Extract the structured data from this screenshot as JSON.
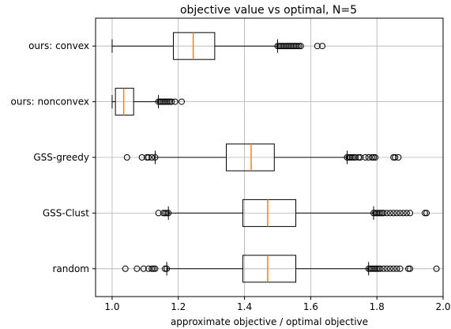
{
  "chart_data": {
    "type": "boxplot",
    "orientation": "horizontal",
    "title": "objective value vs optimal, N=5",
    "xlabel": "approximate objective / optimal objective",
    "ylabel": "",
    "xlim": [
      0.95,
      2.0
    ],
    "xticks": [
      1.0,
      1.2,
      1.4,
      1.6,
      1.8,
      2.0
    ],
    "xtick_labels": [
      "1.0",
      "1.2",
      "1.4",
      "1.6",
      "1.8",
      "2.0"
    ],
    "grid": true,
    "colors": {
      "box": "#000000",
      "median": "#ff7f0e",
      "grid": "#b0b0b0",
      "flier": "#000000"
    },
    "series": [
      {
        "name": "ours: convex",
        "whislo": 1.0,
        "q1": 1.185,
        "median": 1.245,
        "q3": 1.31,
        "whishi": 1.5,
        "fliers": [
          1.5,
          1.505,
          1.51,
          1.515,
          1.52,
          1.525,
          1.53,
          1.535,
          1.54,
          1.545,
          1.55,
          1.555,
          1.56,
          1.565,
          1.57,
          1.62,
          1.635
        ]
      },
      {
        "name": "ours: nonconvex",
        "whislo": 1.0,
        "q1": 1.01,
        "median": 1.035,
        "q3": 1.065,
        "whishi": 1.14,
        "fliers": [
          1.14,
          1.145,
          1.15,
          1.155,
          1.16,
          1.165,
          1.17,
          1.175,
          1.18,
          1.19,
          1.21
        ]
      },
      {
        "name": "GSS-greedy",
        "whislo": 1.13,
        "q1": 1.345,
        "median": 1.42,
        "q3": 1.49,
        "whishi": 1.71,
        "fliers": [
          1.045,
          1.09,
          1.105,
          1.11,
          1.12,
          1.13,
          1.71,
          1.715,
          1.72,
          1.725,
          1.73,
          1.735,
          1.745,
          1.75,
          1.765,
          1.775,
          1.785,
          1.79,
          1.795,
          1.85,
          1.855,
          1.865
        ]
      },
      {
        "name": "GSS-Clust",
        "whislo": 1.17,
        "q1": 1.395,
        "median": 1.47,
        "q3": 1.555,
        "whishi": 1.79,
        "fliers": [
          1.14,
          1.155,
          1.16,
          1.165,
          1.17,
          1.79,
          1.795,
          1.8,
          1.805,
          1.81,
          1.815,
          1.82,
          1.83,
          1.84,
          1.85,
          1.86,
          1.87,
          1.88,
          1.89,
          1.9,
          1.945,
          1.95
        ]
      },
      {
        "name": "random",
        "whislo": 1.165,
        "q1": 1.395,
        "median": 1.47,
        "q3": 1.555,
        "whishi": 1.775,
        "fliers": [
          1.04,
          1.075,
          1.095,
          1.11,
          1.12,
          1.125,
          1.13,
          1.16,
          1.165,
          1.775,
          1.78,
          1.785,
          1.79,
          1.795,
          1.8,
          1.805,
          1.81,
          1.82,
          1.83,
          1.84,
          1.85,
          1.86,
          1.87,
          1.895,
          1.9,
          1.98
        ]
      }
    ]
  }
}
